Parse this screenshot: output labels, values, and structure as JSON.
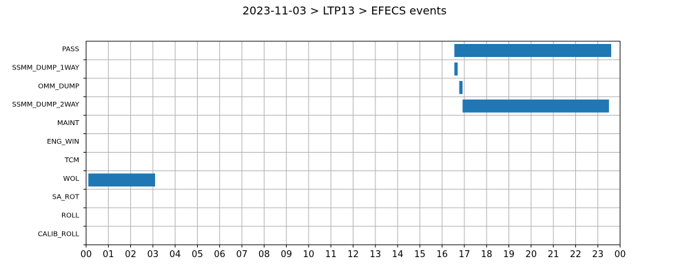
{
  "chart_data": {
    "type": "bar",
    "orientation": "horizontal-timeline",
    "title": "2023-11-03 > LTP13 > EFECS events",
    "xlabel": "",
    "ylabel": "",
    "x_ticks": [
      "00",
      "01",
      "02",
      "03",
      "04",
      "05",
      "06",
      "07",
      "08",
      "09",
      "10",
      "11",
      "12",
      "13",
      "14",
      "15",
      "16",
      "17",
      "18",
      "19",
      "20",
      "21",
      "22",
      "23",
      "00"
    ],
    "xlim_hours": [
      0,
      24
    ],
    "categories": [
      "PASS",
      "SSMM_DUMP_1WAY",
      "OMM_DUMP",
      "SSMM_DUMP_2WAY",
      "MAINT",
      "ENG_WIN",
      "TCM",
      "WOL",
      "SA_ROT",
      "ROLL",
      "CALIB_ROLL"
    ],
    "grid": true,
    "bar_color": "#1f77b4",
    "events": [
      {
        "category": "PASS",
        "start_hour": 16.55,
        "end_hour": 23.6
      },
      {
        "category": "SSMM_DUMP_1WAY",
        "start_hour": 16.55,
        "end_hour": 16.7
      },
      {
        "category": "OMM_DUMP",
        "start_hour": 16.77,
        "end_hour": 16.92
      },
      {
        "category": "SSMM_DUMP_2WAY",
        "start_hour": 16.92,
        "end_hour": 23.5
      },
      {
        "category": "WOL",
        "start_hour": 0.1,
        "end_hour": 3.1
      }
    ]
  }
}
